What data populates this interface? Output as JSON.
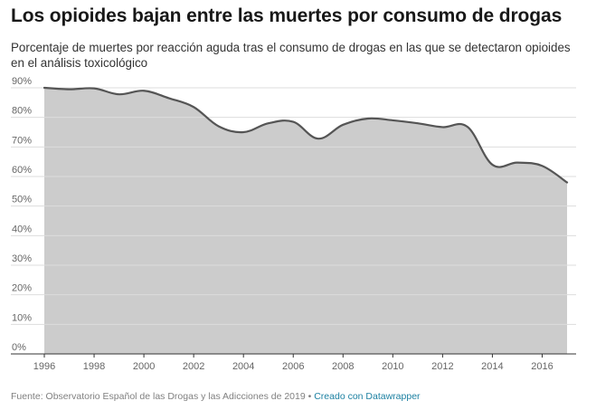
{
  "title": "Los opioides bajan entre las muertes por consumo de drogas",
  "subtitle": "Porcentaje de muertes por reacción aguda tras el consumo de drogas en las que se detectaron opioides en el análisis toxicológico",
  "footer": {
    "source": "Fuente: Observatorio Español de las Drogas y las Adicciones de 2019",
    "separator": " • ",
    "credit": "Creado con Datawrapper"
  },
  "colors": {
    "area_fill": "#cccccc",
    "line": "#555555",
    "grid": "#dddddd",
    "link": "#1d81a2"
  },
  "chart_data": {
    "type": "area",
    "title": "Los opioides bajan entre las muertes por consumo de drogas",
    "subtitle": "Porcentaje de muertes por reacción aguda tras el consumo de drogas en las que se detectaron opioides en el análisis toxicológico",
    "xlabel": "",
    "ylabel": "",
    "x": [
      1996,
      1997,
      1998,
      1999,
      2000,
      2001,
      2002,
      2003,
      2004,
      2005,
      2006,
      2007,
      2008,
      2009,
      2010,
      2011,
      2012,
      2013,
      2014,
      2015,
      2016,
      2017
    ],
    "values": [
      90,
      89.5,
      89.8,
      87.8,
      89,
      86.5,
      83.5,
      77,
      75,
      78,
      78.5,
      72.8,
      77.5,
      79.6,
      79,
      78,
      76.7,
      76.8,
      64,
      64.7,
      63.6,
      58
    ],
    "xlim": [
      1996,
      2017
    ],
    "ylim": [
      0,
      90
    ],
    "x_ticks": [
      1996,
      1998,
      2000,
      2002,
      2004,
      2006,
      2008,
      2010,
      2012,
      2014,
      2016
    ],
    "y_ticks": [
      0,
      10,
      20,
      30,
      40,
      50,
      60,
      70,
      80,
      90
    ],
    "y_tick_labels": [
      "0%",
      "10%",
      "20%",
      "30%",
      "40%",
      "50%",
      "60%",
      "70%",
      "80%",
      "90%"
    ],
    "grid": true,
    "legend": "none"
  }
}
